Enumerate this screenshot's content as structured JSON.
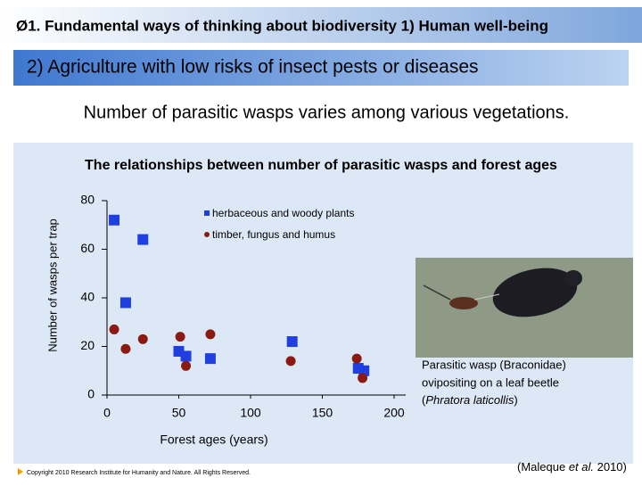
{
  "header": {
    "title": "Ø1. Fundamental ways of thinking about biodiversity 1) Human well-being"
  },
  "subtitle": "2) Agriculture with low risks of insect pests or diseases",
  "lead": "Number of parasitic wasps varies among various vegetations.",
  "chart_data": {
    "type": "scatter",
    "title": "The relationships between number of parasitic wasps and forest ages",
    "x_label": "Forest ages (years)",
    "y_label": "Number of wasps per trap",
    "xlim": [
      0,
      200
    ],
    "xticks": [
      0,
      50,
      100,
      150,
      200
    ],
    "ylim": [
      0,
      80
    ],
    "yticks": [
      0,
      20,
      40,
      60,
      80
    ],
    "legend": "top-right",
    "series": [
      {
        "name": "herbaceous and woody plants",
        "color": "#1f3fe0",
        "marker": "square",
        "x": [
          5,
          25,
          13,
          50,
          55,
          72,
          129,
          175,
          179
        ],
        "values": [
          72,
          64,
          38,
          18,
          16,
          15,
          22,
          11,
          10
        ]
      },
      {
        "name": "timber, fungus and humus",
        "color": "#8b1a12",
        "marker": "circle",
        "x": [
          5,
          13,
          25,
          51,
          55,
          72,
          128,
          174,
          178
        ],
        "values": [
          27,
          19,
          23,
          24,
          12,
          25,
          14,
          15,
          7
        ]
      }
    ]
  },
  "photo_caption": {
    "lines": [
      "Parasitic wasp (Braconidae)",
      "ovipositing on a leaf beetle"
    ],
    "species_open": "(",
    "species": "Phratora laticollis",
    "species_close": ")"
  },
  "copyright": "Copyright 2010 Research Institute for Humanity and Nature. All Rights Reserved.",
  "citation": {
    "before": "(Maleque ",
    "italic": "et al.",
    "after": " 2010)"
  }
}
